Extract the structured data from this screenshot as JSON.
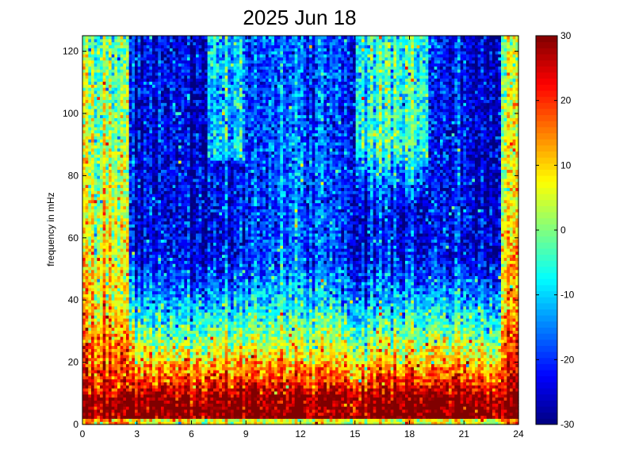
{
  "chart_data": {
    "type": "heatmap",
    "title": "2025 Jun 18",
    "xlabel": "",
    "ylabel": "frequency in mHz",
    "xlim": [
      0,
      24
    ],
    "ylim": [
      0,
      125
    ],
    "x_ticks": [
      "0",
      "3",
      "6",
      "9",
      "12",
      "15",
      "18",
      "21",
      "24"
    ],
    "y_ticks": [
      "0",
      "20",
      "40",
      "60",
      "80",
      "100",
      "120"
    ],
    "colorbar": {
      "range": [
        -30,
        30
      ],
      "ticks": [
        "-30",
        "-20",
        "-10",
        "0",
        "10",
        "20",
        "30"
      ],
      "colormap": "jet"
    },
    "grid": false
  }
}
